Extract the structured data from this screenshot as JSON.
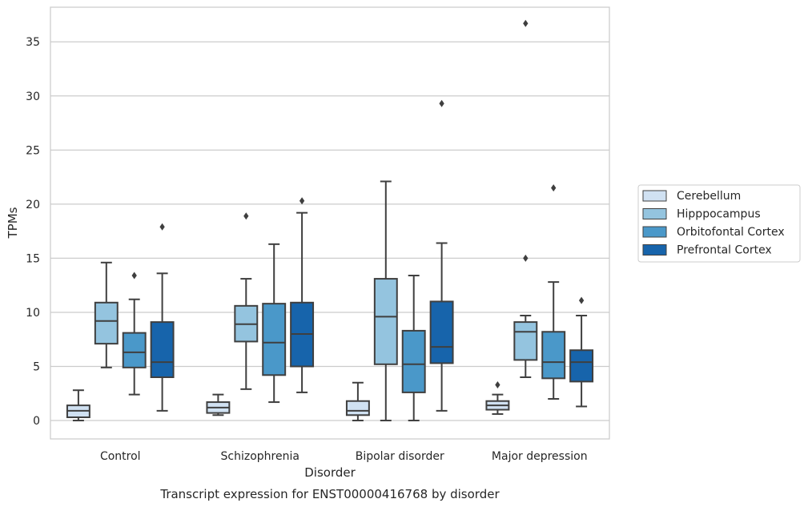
{
  "chart_data": {
    "type": "box",
    "title": "",
    "caption": "Transcript expression for ENST00000416768 by disorder",
    "xlabel": "Disorder",
    "ylabel": "TPMs",
    "ylim": [
      -1.7,
      38.2
    ],
    "yticks": [
      0,
      5,
      10,
      15,
      20,
      25,
      30,
      35
    ],
    "grid": "horizontal",
    "legend_position": "right-outside",
    "categories": [
      "Control",
      "Schizophrenia",
      "Bipolar disorder",
      "Major depression"
    ],
    "series": [
      {
        "name": "Cerebellum",
        "color": "#d0e1f2",
        "boxes": [
          {
            "whislo": 0.0,
            "q1": 0.3,
            "med": 0.9,
            "q3": 1.4,
            "whishi": 2.8,
            "fliers": []
          },
          {
            "whislo": 0.5,
            "q1": 0.7,
            "med": 1.2,
            "q3": 1.7,
            "whishi": 2.4,
            "fliers": []
          },
          {
            "whislo": 0.0,
            "q1": 0.5,
            "med": 0.9,
            "q3": 1.8,
            "whishi": 3.5,
            "fliers": []
          },
          {
            "whislo": 0.6,
            "q1": 1.0,
            "med": 1.4,
            "q3": 1.8,
            "whishi": 2.4,
            "fliers": [
              3.3
            ]
          }
        ]
      },
      {
        "name": "Hipppocampus",
        "color": "#94c4df",
        "boxes": [
          {
            "whislo": 4.9,
            "q1": 7.1,
            "med": 9.2,
            "q3": 10.9,
            "whishi": 14.6,
            "fliers": []
          },
          {
            "whislo": 2.9,
            "q1": 7.3,
            "med": 8.9,
            "q3": 10.6,
            "whishi": 13.1,
            "fliers": [
              18.9
            ]
          },
          {
            "whislo": 0.0,
            "q1": 5.2,
            "med": 9.6,
            "q3": 13.1,
            "whishi": 22.1,
            "fliers": []
          },
          {
            "whislo": 4.0,
            "q1": 5.6,
            "med": 8.2,
            "q3": 9.1,
            "whishi": 9.7,
            "fliers": [
              15.0,
              36.7
            ]
          }
        ]
      },
      {
        "name": "Orbitofontal Cortex",
        "color": "#4a98c9",
        "boxes": [
          {
            "whislo": 2.4,
            "q1": 4.9,
            "med": 6.3,
            "q3": 8.1,
            "whishi": 11.2,
            "fliers": [
              13.4
            ]
          },
          {
            "whislo": 1.7,
            "q1": 4.2,
            "med": 7.2,
            "q3": 10.8,
            "whishi": 16.3,
            "fliers": []
          },
          {
            "whislo": 0.0,
            "q1": 2.6,
            "med": 5.2,
            "q3": 8.3,
            "whishi": 13.4,
            "fliers": []
          },
          {
            "whislo": 2.0,
            "q1": 3.9,
            "med": 5.4,
            "q3": 8.2,
            "whishi": 12.8,
            "fliers": [
              21.5
            ]
          }
        ]
      },
      {
        "name": "Prefrontal Cortex",
        "color": "#1764ab",
        "boxes": [
          {
            "whislo": 0.9,
            "q1": 4.0,
            "med": 5.4,
            "q3": 9.1,
            "whishi": 13.6,
            "fliers": [
              17.9
            ]
          },
          {
            "whislo": 2.6,
            "q1": 5.0,
            "med": 8.0,
            "q3": 10.9,
            "whishi": 19.2,
            "fliers": [
              20.3
            ]
          },
          {
            "whislo": 0.9,
            "q1": 5.3,
            "med": 6.8,
            "q3": 11.0,
            "whishi": 16.4,
            "fliers": [
              29.3
            ]
          },
          {
            "whislo": 1.3,
            "q1": 3.6,
            "med": 5.4,
            "q3": 6.5,
            "whishi": 9.7,
            "fliers": [
              11.1
            ]
          }
        ]
      }
    ]
  }
}
